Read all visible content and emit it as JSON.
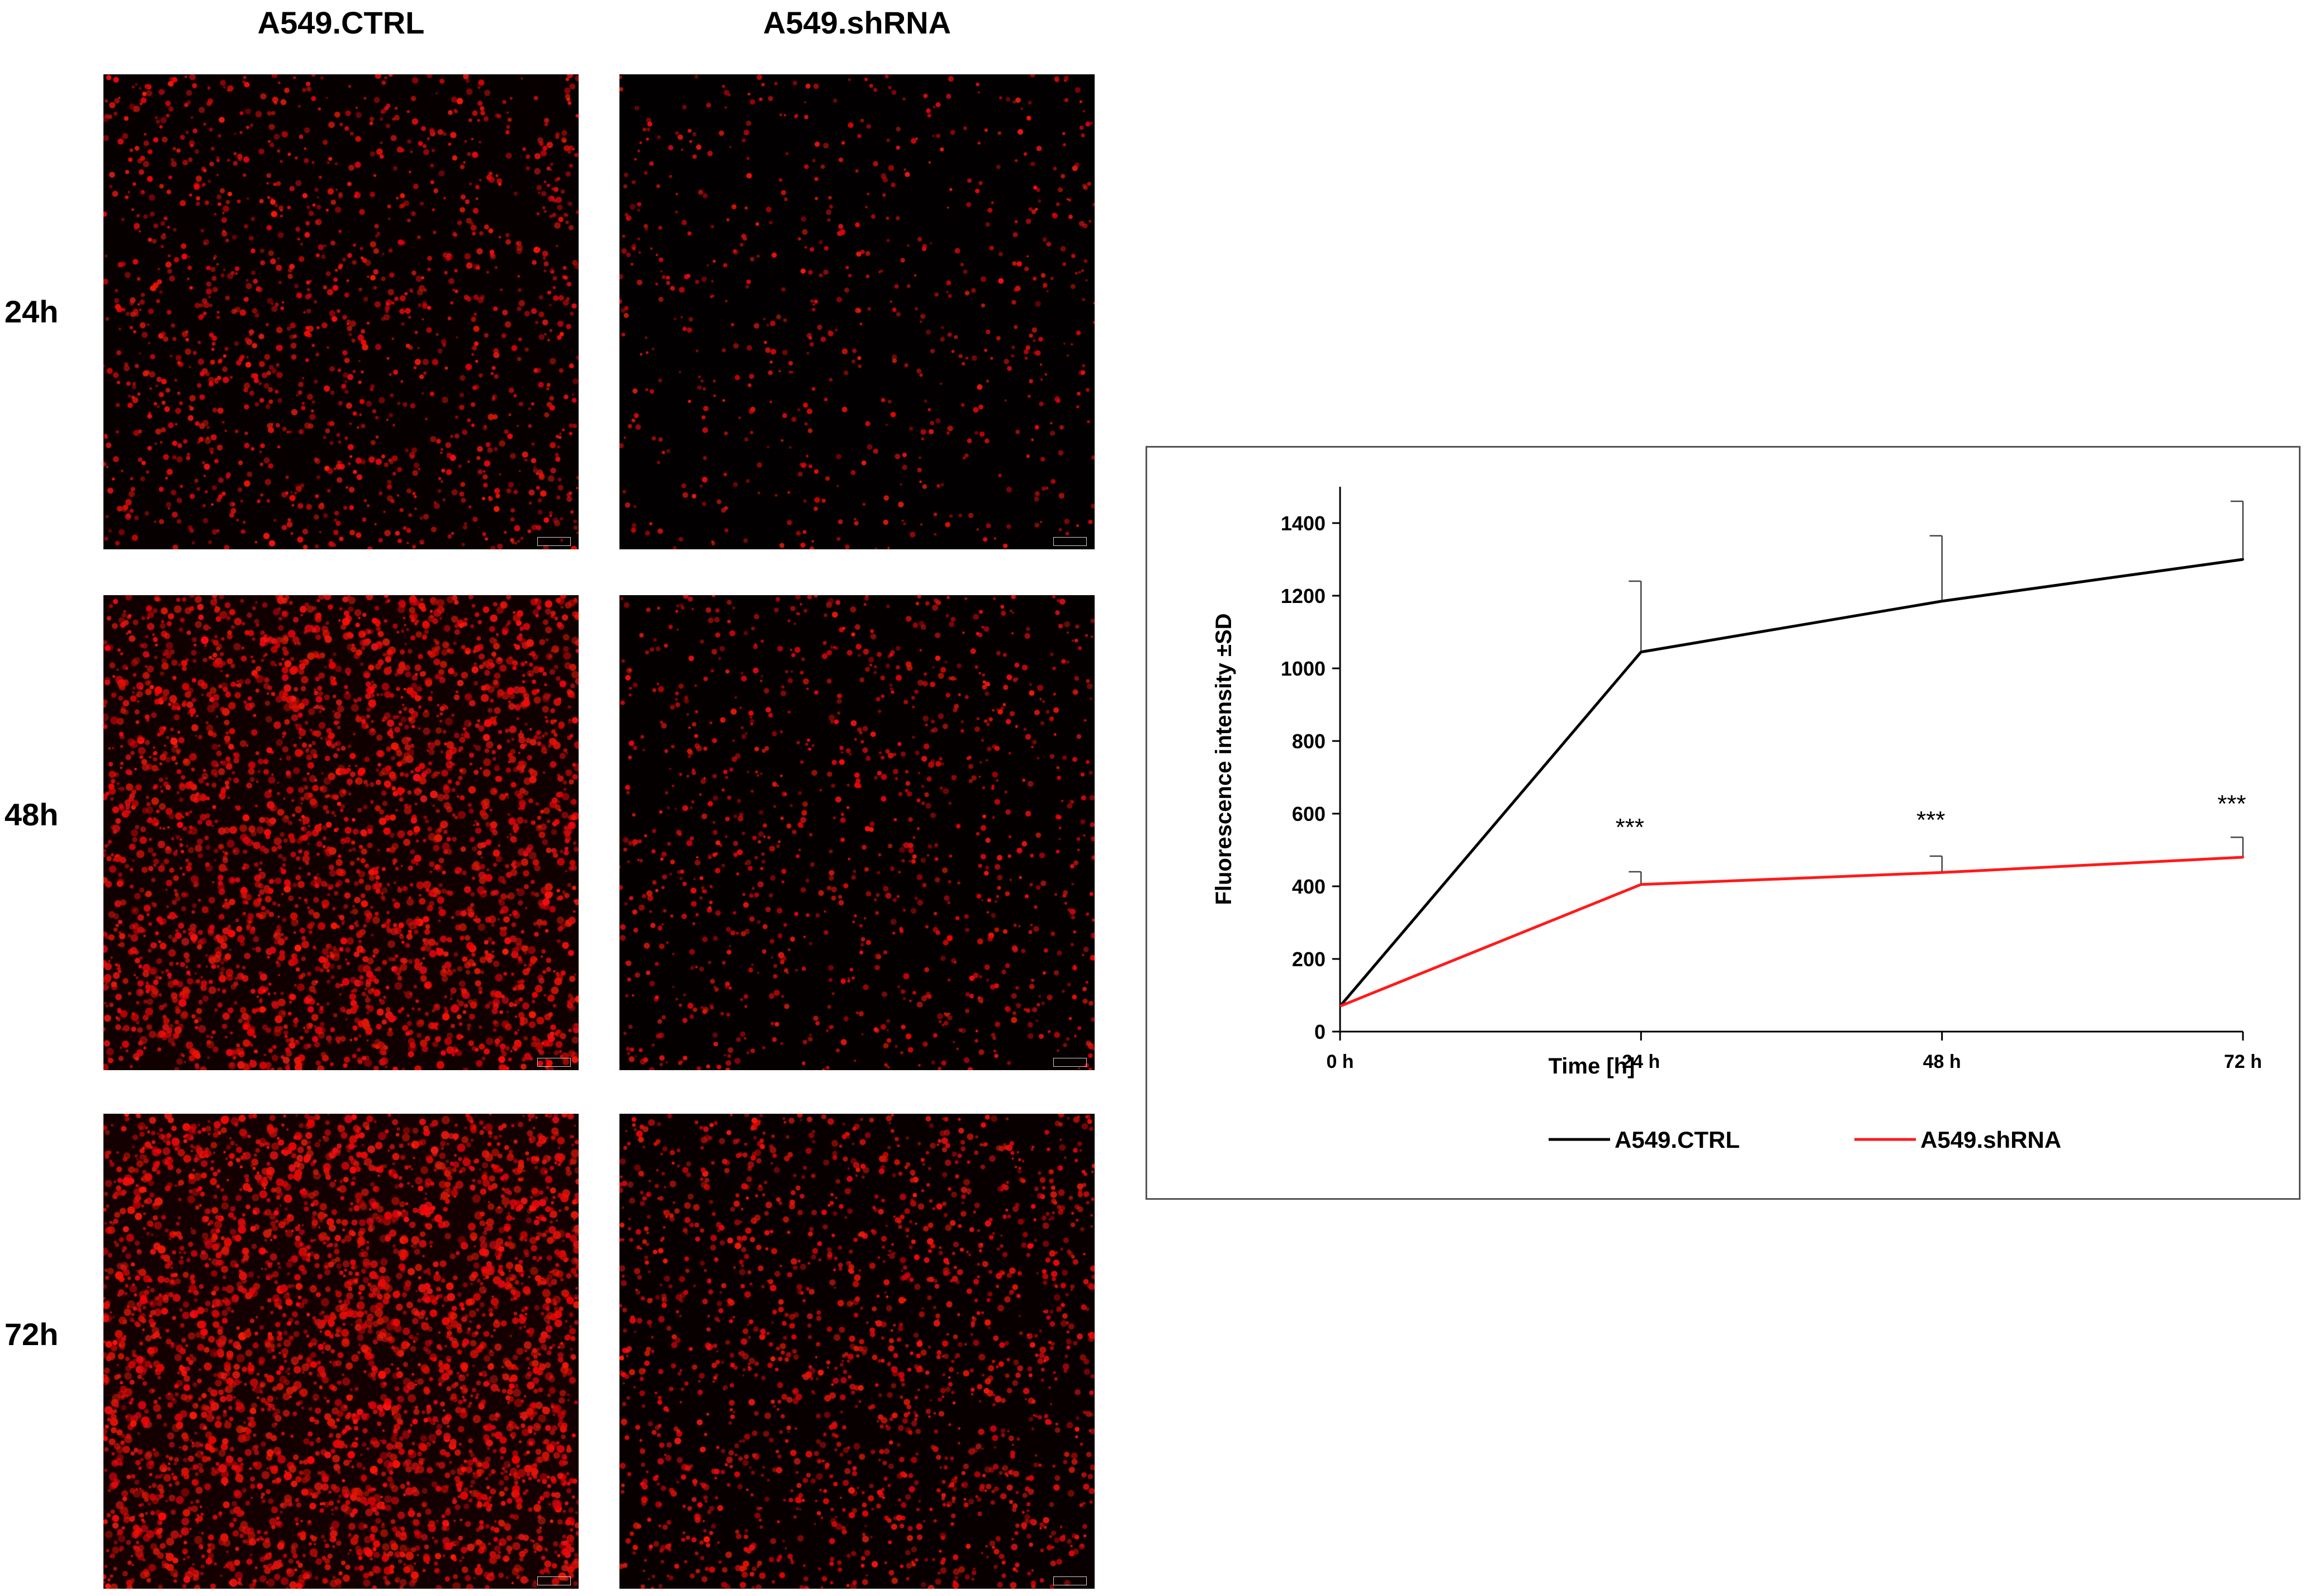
{
  "panels": {
    "columns": [
      {
        "label": "A549.CTRL"
      },
      {
        "label": "A549.shRNA"
      }
    ],
    "rows": [
      {
        "label": "24h",
        "density": [
          0.32,
          0.1
        ]
      },
      {
        "label": "48h",
        "density": [
          0.78,
          0.22
        ]
      },
      {
        "label": "72h",
        "density": [
          0.92,
          0.4
        ]
      }
    ],
    "cell_color": "#e81010"
  },
  "chart_data": {
    "type": "line",
    "title": "",
    "xlabel": "Time [h]",
    "ylabel": "Fluorescence intensity ±SD",
    "categories": [
      "0 h",
      "24 h",
      "48 h",
      "72 h"
    ],
    "yticks": [
      0,
      200,
      400,
      600,
      800,
      1000,
      1200,
      1400
    ],
    "ylim": [
      0,
      1500
    ],
    "grid": false,
    "legend_position": "bottom",
    "series": [
      {
        "name": "A549.CTRL",
        "color": "#000000",
        "values": [
          70,
          1045,
          1185,
          1300
        ],
        "sd": [
          0,
          195,
          180,
          160
        ]
      },
      {
        "name": "A549.shRNA",
        "color": "#ff1a1a",
        "values": [
          70,
          405,
          438,
          480
        ],
        "sd": [
          0,
          35,
          45,
          55
        ]
      }
    ],
    "annotations": [
      {
        "x": "24 h",
        "text": "***",
        "y": 540
      },
      {
        "x": "48 h",
        "text": "***",
        "y": 560
      },
      {
        "x": "72 h",
        "text": "***",
        "y": 605
      }
    ]
  }
}
